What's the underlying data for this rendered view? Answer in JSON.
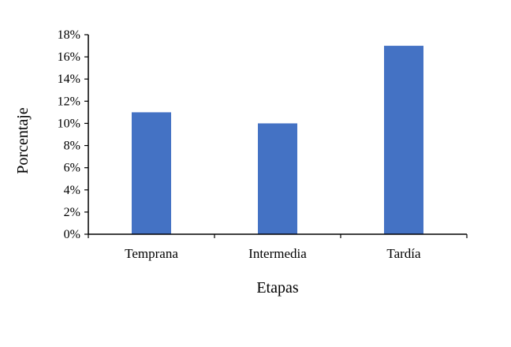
{
  "chart_data": {
    "type": "bar",
    "categories": [
      "Temprana",
      "Intermedia",
      "Tardía"
    ],
    "values": [
      11,
      10,
      17
    ],
    "title": "",
    "xlabel": "Etapas",
    "ylabel": "Porcentaje",
    "ylim": [
      0,
      18
    ],
    "yticks": [
      "0%",
      "2%",
      "4%",
      "6%",
      "8%",
      "10%",
      "12%",
      "14%",
      "16%",
      "18%"
    ],
    "grid": false,
    "bar_color": "#4472C4",
    "axis_color": "#000000"
  }
}
